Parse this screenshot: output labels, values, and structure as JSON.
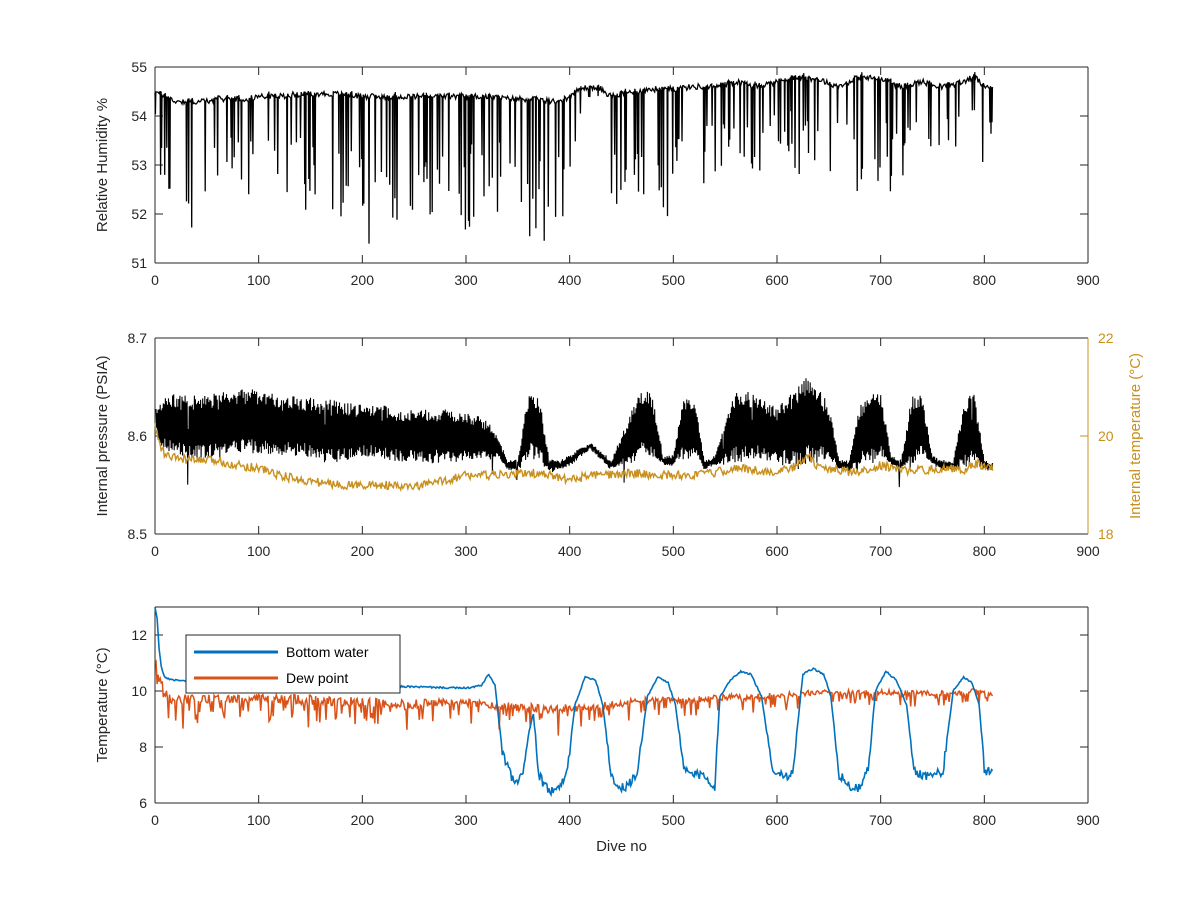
{
  "chart_data": [
    {
      "type": "line",
      "xlabel": "",
      "ylabel": "Relative Humidity %",
      "xlim": [
        0,
        900
      ],
      "ylim": [
        51,
        55
      ],
      "xticks": [
        "0",
        "100",
        "200",
        "300",
        "400",
        "500",
        "600",
        "700",
        "800",
        "900"
      ],
      "yticks": [
        "51",
        "52",
        "53",
        "54",
        "55"
      ],
      "grid": false,
      "colors": {
        "rh": "#000000"
      },
      "series": [
        {
          "key": "rh",
          "x": [
            0,
            10,
            20,
            30,
            40,
            50,
            60,
            70,
            80,
            90,
            100,
            120,
            140,
            160,
            180,
            200,
            220,
            240,
            260,
            280,
            300,
            320,
            340,
            360,
            380,
            390,
            400,
            410,
            420,
            430,
            440,
            460,
            480,
            500,
            520,
            540,
            560,
            580,
            600,
            620,
            640,
            660,
            680,
            700,
            720,
            740,
            760,
            780,
            790,
            800,
            808
          ],
          "baseline": [
            54.5,
            54.4,
            54.3,
            54.3,
            54.3,
            54.3,
            54.35,
            54.35,
            54.35,
            54.35,
            54.4,
            54.4,
            54.45,
            54.45,
            54.45,
            54.4,
            54.4,
            54.4,
            54.4,
            54.4,
            54.4,
            54.4,
            54.35,
            54.35,
            54.3,
            54.3,
            54.4,
            54.55,
            54.6,
            54.55,
            54.4,
            54.5,
            54.55,
            54.55,
            54.6,
            54.6,
            54.7,
            54.6,
            54.7,
            54.8,
            54.75,
            54.6,
            54.8,
            54.75,
            54.6,
            54.7,
            54.6,
            54.7,
            54.8,
            54.6,
            54.6
          ],
          "dip_depth": [
            1.0,
            2.6,
            2.8,
            3.0,
            2.8,
            2.2,
            2.5,
            2.0,
            2.2,
            2.0,
            2.6,
            2.6,
            2.4,
            2.2,
            2.6,
            3.2,
            2.4,
            2.8,
            2.6,
            2.4,
            2.8,
            2.8,
            2.4,
            3.0,
            3.2,
            3.3,
            2.4,
            0.6,
            0.2,
            0.3,
            2.4,
            2.2,
            2.6,
            2.8,
            2.2,
            2.0,
            2.0,
            1.8,
            1.8,
            2.0,
            2.2,
            1.6,
            2.6,
            2.8,
            1.8,
            1.8,
            1.6,
            1.6,
            1.6,
            1.8,
            1.2
          ]
        }
      ]
    },
    {
      "type": "line",
      "xlabel": "",
      "ylabel": "Internal pressure (PSIA)",
      "ylabel_right": "Internal temperature (°C)",
      "xlim": [
        0,
        900
      ],
      "ylim": [
        8.5,
        8.7
      ],
      "ylim_right": [
        18,
        22
      ],
      "xticks": [
        "0",
        "100",
        "200",
        "300",
        "400",
        "500",
        "600",
        "700",
        "800",
        "900"
      ],
      "yticks": [
        "8.5",
        "8.6",
        "8.7"
      ],
      "yticks_right": [
        "18",
        "20",
        "22"
      ],
      "grid": false,
      "colors": {
        "pressure": "#000000",
        "internal_temp": "#C8901E",
        "right_axis": "#C8901E"
      },
      "series": [
        {
          "key": "pressure",
          "x": [
            0,
            5,
            10,
            20,
            40,
            60,
            80,
            100,
            120,
            140,
            160,
            180,
            200,
            220,
            240,
            260,
            280,
            300,
            320,
            330,
            340,
            350,
            360,
            370,
            380,
            390,
            400,
            420,
            440,
            460,
            470,
            480,
            490,
            500,
            510,
            520,
            530,
            540,
            560,
            580,
            600,
            620,
            630,
            640,
            650,
            660,
            670,
            680,
            690,
            700,
            710,
            720,
            730,
            740,
            750,
            760,
            770,
            780,
            790,
            800,
            808
          ],
          "mean": [
            8.62,
            8.61,
            8.615,
            8.61,
            8.61,
            8.61,
            8.615,
            8.615,
            8.61,
            8.61,
            8.605,
            8.605,
            8.605,
            8.605,
            8.6,
            8.6,
            8.6,
            8.6,
            8.595,
            8.59,
            8.57,
            8.57,
            8.61,
            8.61,
            8.57,
            8.57,
            8.575,
            8.59,
            8.57,
            8.6,
            8.615,
            8.61,
            8.575,
            8.575,
            8.61,
            8.61,
            8.57,
            8.575,
            8.61,
            8.61,
            8.6,
            8.61,
            8.615,
            8.61,
            8.605,
            8.57,
            8.57,
            8.6,
            8.61,
            8.61,
            8.575,
            8.57,
            8.605,
            8.61,
            8.575,
            8.57,
            8.57,
            8.6,
            8.61,
            8.57,
            8.568
          ],
          "amp": [
            0.005,
            0.02,
            0.025,
            0.03,
            0.03,
            0.03,
            0.03,
            0.03,
            0.028,
            0.028,
            0.028,
            0.028,
            0.025,
            0.025,
            0.025,
            0.025,
            0.025,
            0.022,
            0.02,
            0.01,
            0.004,
            0.004,
            0.03,
            0.03,
            0.006,
            0.004,
            0.004,
            0.003,
            0.004,
            0.025,
            0.03,
            0.03,
            0.004,
            0.004,
            0.03,
            0.03,
            0.004,
            0.004,
            0.035,
            0.03,
            0.025,
            0.04,
            0.04,
            0.035,
            0.025,
            0.004,
            0.004,
            0.03,
            0.035,
            0.03,
            0.004,
            0.004,
            0.035,
            0.03,
            0.004,
            0.004,
            0.004,
            0.03,
            0.035,
            0.004,
            0.003
          ]
        },
        {
          "key": "internal_temp",
          "axis": "right",
          "x": [
            0,
            5,
            10,
            20,
            40,
            60,
            80,
            100,
            120,
            140,
            160,
            180,
            200,
            220,
            240,
            260,
            280,
            300,
            320,
            340,
            360,
            380,
            400,
            420,
            440,
            460,
            480,
            500,
            520,
            540,
            560,
            580,
            600,
            620,
            630,
            640,
            660,
            680,
            700,
            720,
            740,
            760,
            780,
            790,
            800,
            808
          ],
          "values": [
            20.2,
            19.8,
            19.6,
            19.55,
            19.5,
            19.5,
            19.4,
            19.35,
            19.2,
            19.1,
            19.05,
            19.0,
            19.0,
            19.0,
            18.95,
            19.0,
            19.1,
            19.2,
            19.2,
            19.2,
            19.25,
            19.2,
            19.1,
            19.2,
            19.2,
            19.25,
            19.2,
            19.2,
            19.2,
            19.25,
            19.35,
            19.3,
            19.25,
            19.4,
            19.6,
            19.35,
            19.3,
            19.25,
            19.4,
            19.3,
            19.3,
            19.35,
            19.3,
            19.45,
            19.4,
            19.35
          ]
        }
      ]
    },
    {
      "type": "line",
      "xlabel": "Dive no",
      "ylabel": "Temperature (°C)",
      "xlim": [
        0,
        900
      ],
      "ylim": [
        6,
        13
      ],
      "xticks": [
        "0",
        "100",
        "200",
        "300",
        "400",
        "500",
        "600",
        "700",
        "800",
        "900"
      ],
      "yticks": [
        "6",
        "8",
        "10",
        "12"
      ],
      "grid": false,
      "legend": {
        "position": "top-left"
      },
      "colors": {
        "bottom_water": "#0072BD",
        "dew_point": "#D95319"
      },
      "series": [
        {
          "key": "bottom_water",
          "name": "Bottom water",
          "x": [
            0,
            2,
            4,
            6,
            8,
            10,
            15,
            20,
            40,
            60,
            100,
            150,
            200,
            250,
            300,
            315,
            322,
            328,
            335,
            343,
            350,
            355,
            360,
            365,
            370,
            378,
            385,
            392,
            398,
            405,
            415,
            425,
            432,
            440,
            448,
            455,
            465,
            475,
            485,
            495,
            502,
            510,
            520,
            530,
            540,
            545,
            555,
            565,
            575,
            585,
            595,
            605,
            615,
            625,
            635,
            645,
            652,
            660,
            670,
            680,
            688,
            695,
            705,
            715,
            725,
            732,
            740,
            750,
            760,
            770,
            780,
            788,
            795,
            800,
            805,
            808
          ],
          "values": [
            13.0,
            12.6,
            11.5,
            10.9,
            10.6,
            10.5,
            10.4,
            10.4,
            10.3,
            10.3,
            10.25,
            10.2,
            10.2,
            10.15,
            10.1,
            10.2,
            10.6,
            10.2,
            7.8,
            7.0,
            6.6,
            7.2,
            8.4,
            9.2,
            7.0,
            6.5,
            6.4,
            6.6,
            7.2,
            9.5,
            10.5,
            10.4,
            9.5,
            7.0,
            6.5,
            6.6,
            7.0,
            9.8,
            10.5,
            10.3,
            9.5,
            7.2,
            7.0,
            7.0,
            6.6,
            9.8,
            10.4,
            10.7,
            10.6,
            9.8,
            7.3,
            7.0,
            7.0,
            10.6,
            10.8,
            10.6,
            9.8,
            7.0,
            6.6,
            6.5,
            7.2,
            10.0,
            10.7,
            10.4,
            9.5,
            7.2,
            7.0,
            7.0,
            7.1,
            10.0,
            10.5,
            10.3,
            9.5,
            7.2,
            7.1,
            7.2
          ]
        },
        {
          "key": "dew_point",
          "name": "Dew point",
          "x": [
            0,
            4,
            8,
            12,
            20,
            40,
            60,
            80,
            100,
            120,
            140,
            160,
            180,
            200,
            220,
            240,
            260,
            280,
            300,
            320,
            340,
            360,
            380,
            400,
            420,
            440,
            460,
            480,
            500,
            520,
            540,
            560,
            580,
            600,
            620,
            640,
            660,
            680,
            700,
            720,
            740,
            760,
            780,
            790,
            800,
            808
          ],
          "values": [
            11.2,
            10.4,
            10.1,
            9.8,
            9.7,
            9.7,
            9.7,
            9.7,
            9.75,
            9.7,
            9.7,
            9.65,
            9.6,
            9.6,
            9.55,
            9.5,
            9.55,
            9.6,
            9.6,
            9.5,
            9.45,
            9.4,
            9.3,
            9.4,
            9.4,
            9.5,
            9.6,
            9.7,
            9.65,
            9.7,
            9.75,
            9.8,
            9.8,
            9.85,
            9.9,
            9.95,
            9.95,
            9.95,
            9.95,
            9.95,
            9.9,
            9.95,
            9.9,
            10.0,
            10.0,
            9.9
          ],
          "noise": [
            0.2,
            0.5,
            0.6,
            0.6,
            0.6,
            0.6,
            0.55,
            0.5,
            0.55,
            0.55,
            0.6,
            0.6,
            0.6,
            0.6,
            0.55,
            0.6,
            0.5,
            0.45,
            0.5,
            0.45,
            0.5,
            0.55,
            0.6,
            0.5,
            0.45,
            0.45,
            0.45,
            0.4,
            0.4,
            0.4,
            0.35,
            0.35,
            0.35,
            0.3,
            0.35,
            0.3,
            0.3,
            0.3,
            0.3,
            0.3,
            0.3,
            0.3,
            0.3,
            0.3,
            0.3,
            0.3
          ]
        }
      ]
    }
  ]
}
